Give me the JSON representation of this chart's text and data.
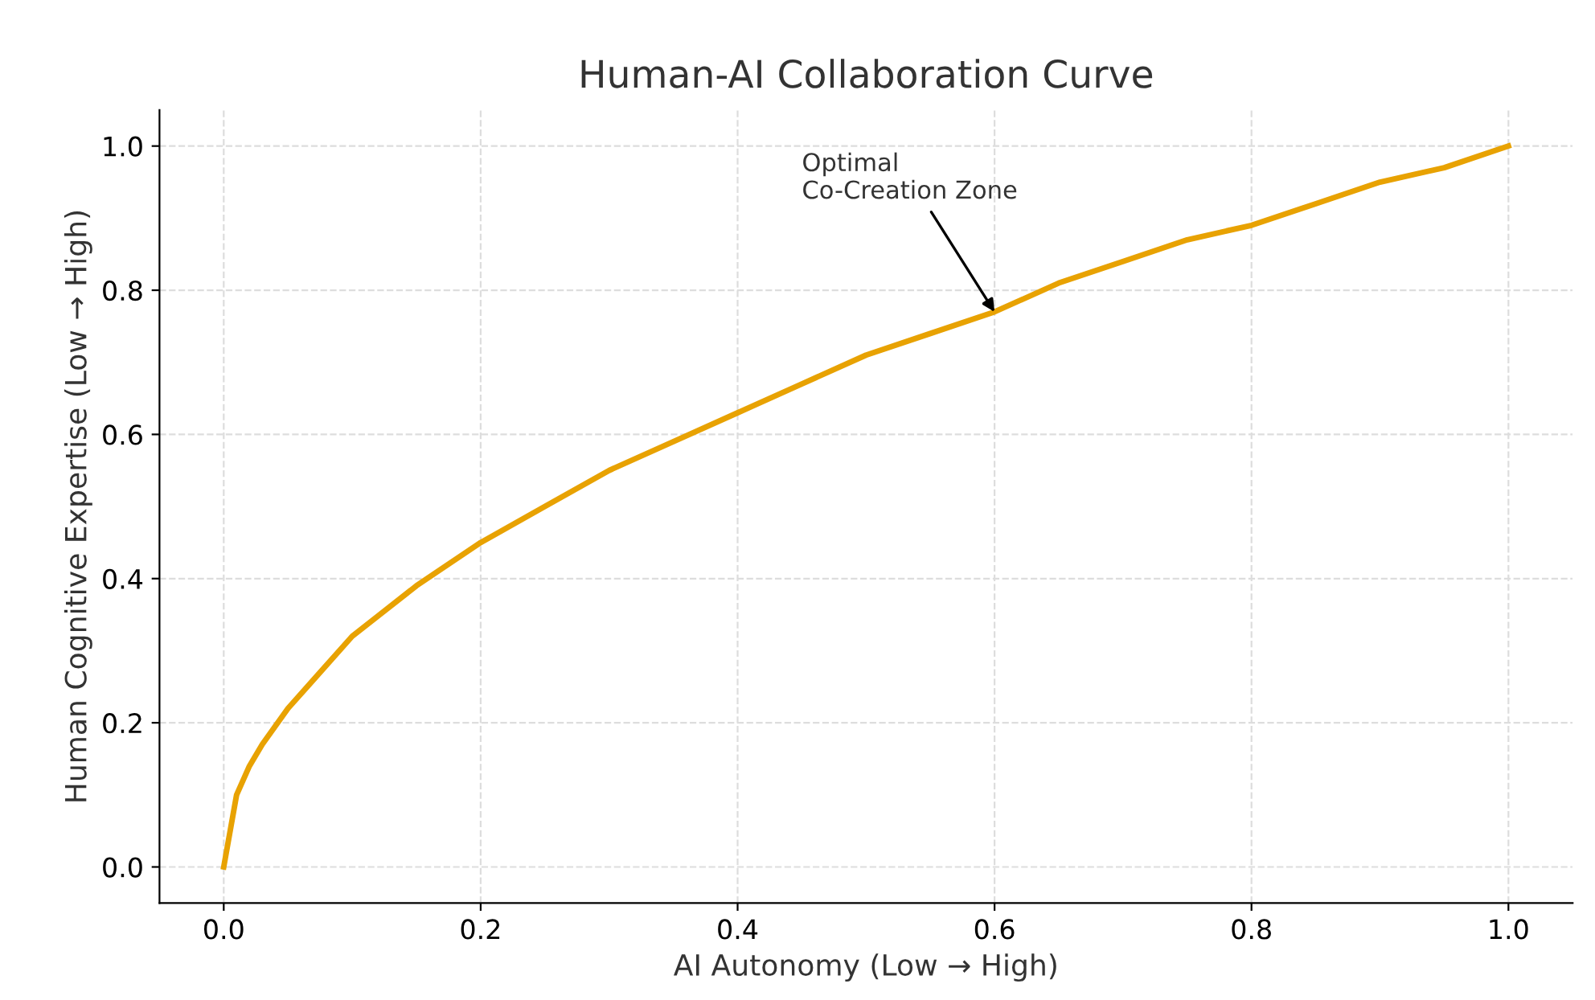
{
  "chart_data": {
    "type": "line",
    "title": "Human-AI Collaboration Curve",
    "xlabel": "AI Autonomy (Low → High)",
    "ylabel": "Human Cognitive Expertise (Low → High)",
    "x": [
      0,
      0.01,
      0.02,
      0.03,
      0.05,
      0.07,
      0.1,
      0.15,
      0.2,
      0.25,
      0.3,
      0.35,
      0.4,
      0.45,
      0.5,
      0.55,
      0.6,
      0.65,
      0.7,
      0.75,
      0.8,
      0.85,
      0.9,
      0.95,
      1.0
    ],
    "series": [
      {
        "color": "#e8a202",
        "values": [
          0,
          0.1,
          0.14,
          0.17,
          0.22,
          0.26,
          0.32,
          0.39,
          0.45,
          0.5,
          0.55,
          0.59,
          0.63,
          0.67,
          0.71,
          0.74,
          0.77,
          0.81,
          0.84,
          0.87,
          0.89,
          0.92,
          0.95,
          0.97,
          1.0
        ]
      }
    ],
    "xlim": [
      -0.05,
      1.05
    ],
    "ylim": [
      -0.05,
      1.05
    ],
    "xticks": [
      {
        "value": 0,
        "label": "0.0"
      },
      0.2,
      0.4,
      0.6,
      0.8,
      {
        "value": 1,
        "label": "1.0"
      }
    ],
    "yticks": [
      {
        "value": 0,
        "label": "0.0"
      },
      0.2,
      0.4,
      0.6,
      0.8,
      {
        "value": 1,
        "label": "1.0"
      }
    ],
    "annotations": [
      {
        "text": "Optimal\nCo-Creation Zone",
        "x": 0.6,
        "y": 0.77
      }
    ],
    "grid": true,
    "marker": "none",
    "line_style": "solid"
  }
}
